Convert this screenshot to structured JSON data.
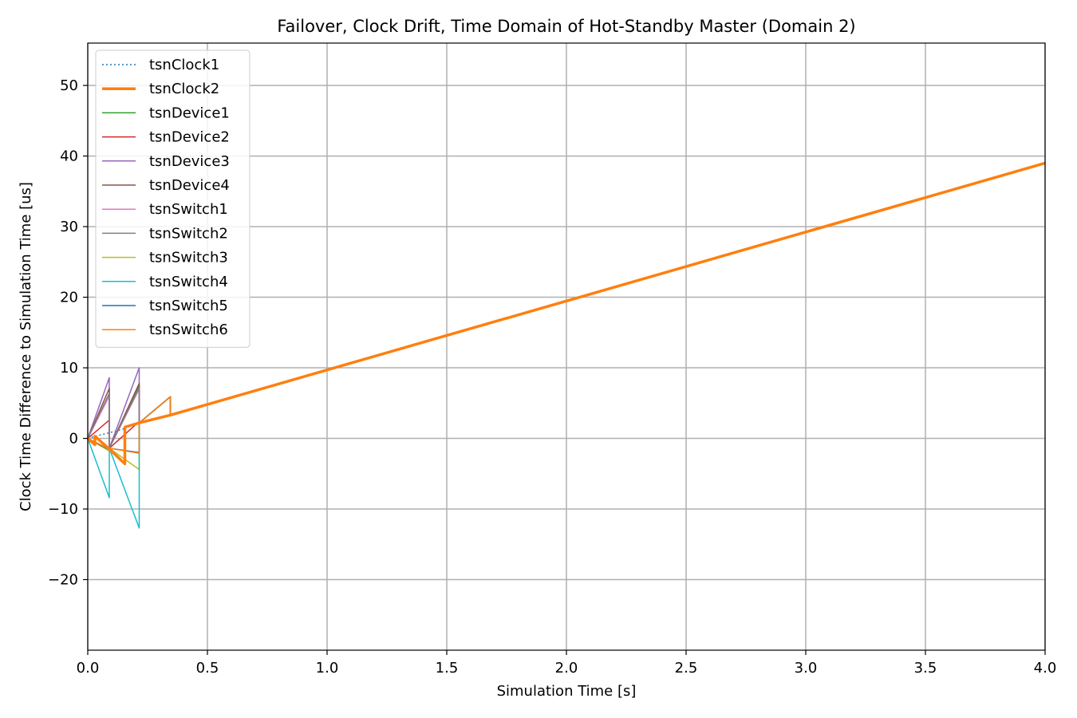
{
  "chart_data": {
    "type": "line",
    "title": "Failover, Clock Drift, Time Domain of Hot-Standby Master (Domain 2)",
    "xlabel": "Simulation Time [s]",
    "ylabel": "Clock Time Difference to Simulation Time [us]",
    "xlim": [
      0,
      4
    ],
    "ylim": [
      -30,
      56
    ],
    "xticks": [
      0,
      0.5,
      1.0,
      1.5,
      2.0,
      2.5,
      3.0,
      3.5,
      4.0
    ],
    "xtick_labels": [
      "0.0",
      "0.5",
      "1.0",
      "1.5",
      "2.0",
      "2.5",
      "3.0",
      "3.5",
      "4.0"
    ],
    "yticks": [
      -20,
      -10,
      0,
      10,
      20,
      30,
      40,
      50
    ],
    "ytick_labels": [
      "−20",
      "−10",
      "0",
      "10",
      "20",
      "30",
      "40",
      "50"
    ],
    "grid": true,
    "legend_position": "upper-left",
    "series": [
      {
        "name": "tsnClock1",
        "color": "#1f77b4",
        "style": "dotted",
        "width": 1.5,
        "x": [
          0,
          0.03,
          0.09,
          0.125,
          0.155
        ],
        "y": [
          0,
          0.3,
          0.8,
          1.1,
          1.4
        ]
      },
      {
        "name": "tsnClock2",
        "color": "#ff7f0e",
        "style": "solid",
        "width": 3.5,
        "x": [
          0,
          0.03,
          0.03,
          0.09,
          0.155,
          0.155,
          0.215,
          0.345,
          4.0
        ],
        "y": [
          0,
          -0.9,
          0.3,
          -1.5,
          -3.6,
          1.6,
          2.2,
          3.3,
          39.0
        ]
      },
      {
        "name": "tsnDevice1",
        "color": "#2ca02c",
        "style": "solid",
        "width": 1.5,
        "x": [
          0,
          0.09,
          0.09,
          0.215,
          0.215,
          0.345,
          0.345,
          4.0
        ],
        "y": [
          0,
          6.2,
          -1.4,
          7.5,
          2.2,
          5.9,
          3.3,
          39.0
        ]
      },
      {
        "name": "tsnDevice2",
        "color": "#d62728",
        "style": "solid",
        "width": 1.5,
        "x": [
          0,
          0.09,
          0.09,
          0.215,
          0.215,
          0.345,
          0.345,
          4.0
        ],
        "y": [
          0,
          2.6,
          -1.4,
          2.4,
          2.2,
          5.9,
          3.3,
          39.0
        ]
      },
      {
        "name": "tsnDevice3",
        "color": "#9467bd",
        "style": "solid",
        "width": 1.5,
        "x": [
          0,
          0.09,
          0.09,
          0.215,
          0.215,
          0.345,
          0.345,
          4.0
        ],
        "y": [
          0,
          8.6,
          -1.4,
          10.0,
          2.2,
          5.9,
          3.3,
          39.0
        ]
      },
      {
        "name": "tsnDevice4",
        "color": "#8c564b",
        "style": "solid",
        "width": 1.5,
        "x": [
          0,
          0.09,
          0.09,
          0.215,
          0.215,
          0.345,
          0.345,
          4.0
        ],
        "y": [
          0,
          7.1,
          -1.4,
          7.8,
          2.2,
          5.9,
          3.3,
          39.0
        ]
      },
      {
        "name": "tsnSwitch1",
        "color": "#e377c2",
        "style": "solid",
        "width": 1.5,
        "x": [
          0,
          0.09,
          0.09,
          0.215,
          0.215,
          0.345,
          0.345,
          4.0
        ],
        "y": [
          0,
          6.0,
          -1.4,
          7.0,
          2.2,
          5.9,
          3.3,
          39.0
        ]
      },
      {
        "name": "tsnSwitch2",
        "color": "#7f7f7f",
        "style": "solid",
        "width": 1.5,
        "x": [
          0,
          0.09,
          0.09,
          0.215,
          0.215,
          0.345,
          0.345,
          4.0
        ],
        "y": [
          0,
          6.4,
          -1.4,
          7.2,
          2.2,
          5.9,
          3.3,
          39.0
        ]
      },
      {
        "name": "tsnSwitch3",
        "color": "#bcbd22",
        "style": "solid",
        "width": 1.5,
        "x": [
          0,
          0.09,
          0.09,
          0.215,
          0.215,
          0.345,
          0.345,
          4.0
        ],
        "y": [
          0,
          -1.8,
          -1.4,
          -4.4,
          2.2,
          5.9,
          3.3,
          39.0
        ]
      },
      {
        "name": "tsnSwitch4",
        "color": "#17becf",
        "style": "solid",
        "width": 1.5,
        "x": [
          0,
          0.09,
          0.09,
          0.215,
          0.215,
          0.345,
          0.345,
          4.0
        ],
        "y": [
          0,
          -8.4,
          -1.4,
          -12.7,
          2.2,
          5.9,
          3.3,
          39.0
        ]
      },
      {
        "name": "tsnSwitch5",
        "color": "#1f77b4",
        "style": "solid",
        "width": 1.5,
        "x": [
          0,
          0.09,
          0.09,
          0.215,
          0.215,
          0.345,
          0.345,
          4.0
        ],
        "y": [
          0,
          -1.6,
          -1.4,
          -2.0,
          2.2,
          5.9,
          3.3,
          39.0
        ]
      },
      {
        "name": "tsnSwitch6",
        "color": "#ff7f0e",
        "style": "solid",
        "width": 1.5,
        "x": [
          0,
          0.09,
          0.09,
          0.215,
          0.215,
          0.345,
          0.345,
          4.0
        ],
        "y": [
          0,
          -1.5,
          -1.4,
          -2.1,
          2.2,
          5.9,
          3.3,
          39.0
        ]
      }
    ]
  }
}
